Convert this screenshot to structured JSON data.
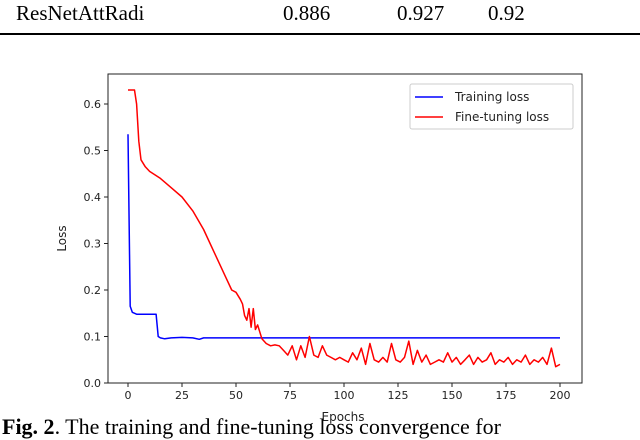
{
  "table": {
    "row": {
      "model": "ResNetAttRadi",
      "values": [
        "0.886",
        "0.927",
        "0.92"
      ]
    }
  },
  "chart_data": {
    "type": "line",
    "title": "",
    "xlabel": "Epochs",
    "ylabel": "Loss",
    "xlim": [
      -8,
      208
    ],
    "ylim": [
      0.0,
      0.65
    ],
    "xticks": [
      "0",
      "25",
      "50",
      "75",
      "100",
      "125",
      "150",
      "175",
      "200"
    ],
    "yticks": [
      "0.0",
      "0.1",
      "0.2",
      "0.3",
      "0.4",
      "0.5",
      "0.6"
    ],
    "legend_position": "upper right",
    "grid": false,
    "series": [
      {
        "name": "Training loss",
        "color": "#0000ff",
        "x": [
          0,
          1,
          2,
          4,
          6,
          10,
          13,
          14,
          15,
          17,
          20,
          25,
          30,
          33,
          35,
          40,
          60,
          100,
          150,
          200
        ],
        "y": [
          0.535,
          0.165,
          0.152,
          0.148,
          0.148,
          0.148,
          0.148,
          0.1,
          0.097,
          0.095,
          0.097,
          0.098,
          0.097,
          0.094,
          0.097,
          0.097,
          0.097,
          0.097,
          0.097,
          0.097
        ]
      },
      {
        "name": "Fine-tuning loss",
        "color": "#ff0000",
        "x": [
          0,
          3,
          4,
          5,
          6,
          8,
          10,
          15,
          20,
          25,
          30,
          35,
          40,
          45,
          48,
          50,
          52,
          53,
          54,
          55,
          56,
          57,
          58,
          59,
          60,
          62,
          64,
          66,
          68,
          70,
          72,
          74,
          76,
          78,
          80,
          82,
          84,
          86,
          88,
          90,
          92,
          94,
          96,
          98,
          100,
          102,
          104,
          106,
          108,
          110,
          112,
          114,
          116,
          118,
          120,
          122,
          124,
          126,
          128,
          130,
          132,
          134,
          136,
          138,
          140,
          142,
          144,
          146,
          148,
          150,
          152,
          154,
          156,
          158,
          160,
          162,
          164,
          166,
          168,
          170,
          172,
          174,
          176,
          178,
          180,
          182,
          184,
          186,
          188,
          190,
          192,
          194,
          196,
          198,
          200
        ],
        "y": [
          0.63,
          0.63,
          0.6,
          0.52,
          0.48,
          0.465,
          0.455,
          0.44,
          0.42,
          0.4,
          0.37,
          0.33,
          0.28,
          0.23,
          0.2,
          0.195,
          0.18,
          0.17,
          0.145,
          0.135,
          0.16,
          0.12,
          0.16,
          0.115,
          0.125,
          0.095,
          0.085,
          0.08,
          0.082,
          0.08,
          0.07,
          0.06,
          0.08,
          0.05,
          0.08,
          0.055,
          0.1,
          0.06,
          0.055,
          0.08,
          0.06,
          0.055,
          0.05,
          0.055,
          0.05,
          0.045,
          0.065,
          0.05,
          0.075,
          0.04,
          0.085,
          0.05,
          0.045,
          0.055,
          0.045,
          0.085,
          0.05,
          0.045,
          0.055,
          0.09,
          0.04,
          0.07,
          0.045,
          0.06,
          0.04,
          0.045,
          0.05,
          0.045,
          0.065,
          0.045,
          0.055,
          0.04,
          0.05,
          0.06,
          0.04,
          0.055,
          0.045,
          0.05,
          0.065,
          0.04,
          0.05,
          0.045,
          0.055,
          0.04,
          0.05,
          0.045,
          0.06,
          0.04,
          0.05,
          0.045,
          0.055,
          0.04,
          0.075,
          0.035,
          0.04
        ]
      }
    ]
  },
  "caption": {
    "label": "Fig. 2",
    "text": ". The training and fine-tuning loss convergence for"
  }
}
